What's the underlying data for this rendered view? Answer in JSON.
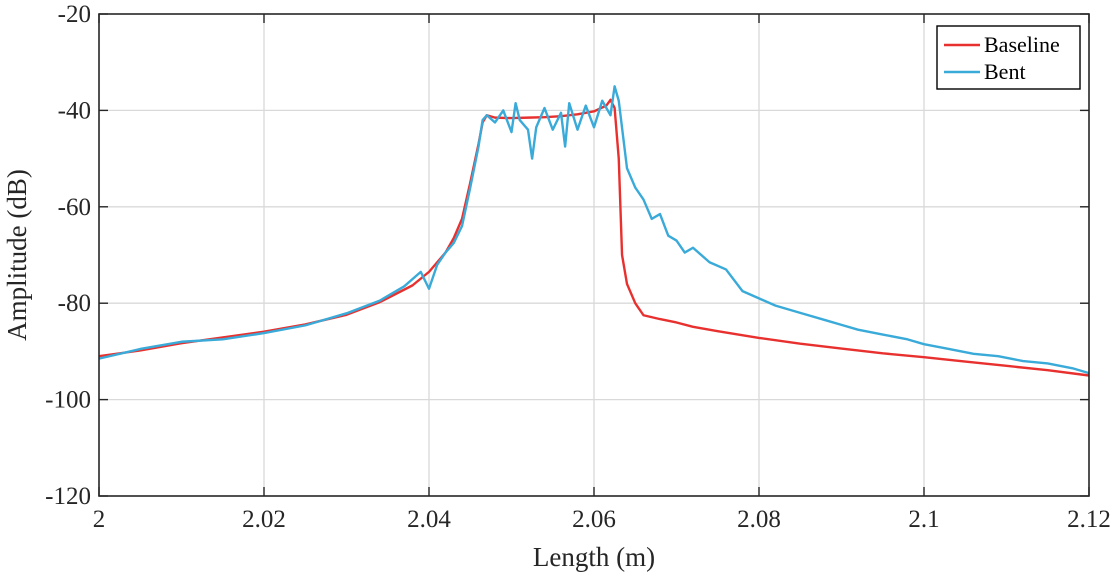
{
  "chart_data": {
    "type": "line",
    "xlabel": "Length (m)",
    "ylabel": "Amplitude (dB)",
    "xlim": [
      2,
      2.12
    ],
    "ylim": [
      -120,
      -20
    ],
    "xticks": [
      2,
      2.02,
      2.04,
      2.06,
      2.08,
      2.1,
      2.12
    ],
    "xtick_labels": [
      "2",
      "2.02",
      "2.04",
      "2.06",
      "2.08",
      "2.1",
      "2.12"
    ],
    "yticks": [
      -120,
      -100,
      -80,
      -60,
      -40,
      -20
    ],
    "ytick_labels": [
      "-120",
      "-100",
      "-80",
      "-60",
      "-40",
      "-20"
    ],
    "grid": true,
    "legend_position": "top-right",
    "series": [
      {
        "name": "Baseline",
        "color": "#e8312f",
        "points": [
          [
            2.0,
            -91.0
          ],
          [
            2.005,
            -89.8
          ],
          [
            2.01,
            -88.3
          ],
          [
            2.015,
            -87.1
          ],
          [
            2.02,
            -85.9
          ],
          [
            2.025,
            -84.4
          ],
          [
            2.03,
            -82.4
          ],
          [
            2.034,
            -79.8
          ],
          [
            2.038,
            -76.3
          ],
          [
            2.04,
            -73.5
          ],
          [
            2.042,
            -69.5
          ],
          [
            2.043,
            -66.5
          ],
          [
            2.044,
            -62.5
          ],
          [
            2.045,
            -55.0
          ],
          [
            2.046,
            -47.0
          ],
          [
            2.0465,
            -42.5
          ],
          [
            2.047,
            -41.0
          ],
          [
            2.048,
            -41.5
          ],
          [
            2.05,
            -41.6
          ],
          [
            2.052,
            -41.5
          ],
          [
            2.054,
            -41.4
          ],
          [
            2.056,
            -41.2
          ],
          [
            2.058,
            -40.8
          ],
          [
            2.06,
            -40.2
          ],
          [
            2.0615,
            -39.0
          ],
          [
            2.062,
            -37.8
          ],
          [
            2.0625,
            -39.5
          ],
          [
            2.063,
            -50.0
          ],
          [
            2.0634,
            -70.0
          ],
          [
            2.064,
            -76.0
          ],
          [
            2.065,
            -80.0
          ],
          [
            2.066,
            -82.5
          ],
          [
            2.068,
            -83.3
          ],
          [
            2.07,
            -84.0
          ],
          [
            2.072,
            -84.9
          ],
          [
            2.075,
            -85.8
          ],
          [
            2.08,
            -87.2
          ],
          [
            2.085,
            -88.4
          ],
          [
            2.09,
            -89.4
          ],
          [
            2.095,
            -90.4
          ],
          [
            2.1,
            -91.2
          ],
          [
            2.105,
            -92.1
          ],
          [
            2.11,
            -93.0
          ],
          [
            2.115,
            -93.9
          ],
          [
            2.12,
            -95.0
          ]
        ]
      },
      {
        "name": "Bent",
        "color": "#3aaad9",
        "points": [
          [
            2.0,
            -91.5
          ],
          [
            2.005,
            -89.5
          ],
          [
            2.01,
            -88.0
          ],
          [
            2.015,
            -87.5
          ],
          [
            2.02,
            -86.2
          ],
          [
            2.025,
            -84.6
          ],
          [
            2.03,
            -82.1
          ],
          [
            2.034,
            -79.5
          ],
          [
            2.037,
            -76.5
          ],
          [
            2.039,
            -73.5
          ],
          [
            2.04,
            -77.0
          ],
          [
            2.041,
            -72.0
          ],
          [
            2.042,
            -69.5
          ],
          [
            2.043,
            -67.5
          ],
          [
            2.044,
            -64.0
          ],
          [
            2.045,
            -56.0
          ],
          [
            2.046,
            -47.5
          ],
          [
            2.0465,
            -42.0
          ],
          [
            2.047,
            -41.0
          ],
          [
            2.048,
            -42.5
          ],
          [
            2.049,
            -40.0
          ],
          [
            2.05,
            -44.5
          ],
          [
            2.0505,
            -38.5
          ],
          [
            2.051,
            -42.0
          ],
          [
            2.052,
            -44.0
          ],
          [
            2.0525,
            -50.0
          ],
          [
            2.053,
            -43.5
          ],
          [
            2.054,
            -39.5
          ],
          [
            2.055,
            -44.0
          ],
          [
            2.056,
            -40.5
          ],
          [
            2.0565,
            -47.5
          ],
          [
            2.057,
            -38.5
          ],
          [
            2.058,
            -44.0
          ],
          [
            2.059,
            -39.0
          ],
          [
            2.06,
            -43.5
          ],
          [
            2.061,
            -38.0
          ],
          [
            2.062,
            -41.0
          ],
          [
            2.0625,
            -35.0
          ],
          [
            2.063,
            -38.0
          ],
          [
            2.0635,
            -45.0
          ],
          [
            2.064,
            -52.0
          ],
          [
            2.065,
            -56.0
          ],
          [
            2.066,
            -58.5
          ],
          [
            2.067,
            -62.5
          ],
          [
            2.068,
            -61.5
          ],
          [
            2.069,
            -66.0
          ],
          [
            2.07,
            -67.0
          ],
          [
            2.071,
            -69.5
          ],
          [
            2.072,
            -68.5
          ],
          [
            2.074,
            -71.5
          ],
          [
            2.076,
            -73.0
          ],
          [
            2.078,
            -77.5
          ],
          [
            2.08,
            -79.0
          ],
          [
            2.082,
            -80.5
          ],
          [
            2.085,
            -82.0
          ],
          [
            2.088,
            -83.5
          ],
          [
            2.09,
            -84.5
          ],
          [
            2.092,
            -85.5
          ],
          [
            2.095,
            -86.5
          ],
          [
            2.098,
            -87.5
          ],
          [
            2.1,
            -88.5
          ],
          [
            2.103,
            -89.5
          ],
          [
            2.106,
            -90.5
          ],
          [
            2.109,
            -91.0
          ],
          [
            2.112,
            -92.0
          ],
          [
            2.115,
            -92.5
          ],
          [
            2.118,
            -93.5
          ],
          [
            2.12,
            -94.5
          ]
        ]
      }
    ]
  }
}
